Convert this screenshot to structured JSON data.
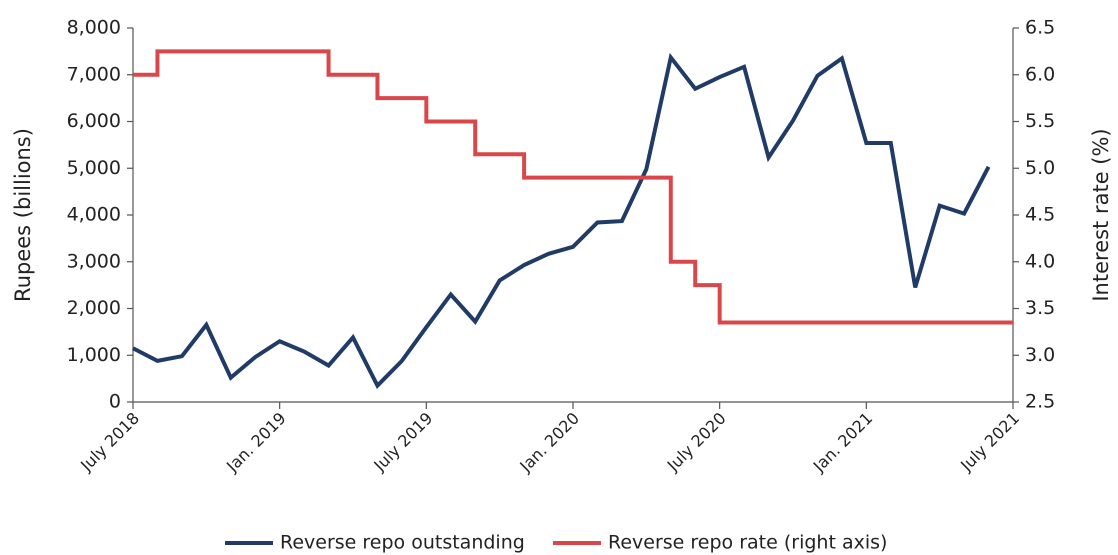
{
  "chart_data": {
    "type": "line",
    "y_label": "Rupees (billions)",
    "y2_label": "Interest rate (%)",
    "categories": [
      "July 2018",
      null,
      null,
      null,
      null,
      null,
      "Jan. 2019",
      null,
      null,
      null,
      null,
      null,
      "July 2019",
      null,
      null,
      null,
      null,
      null,
      "Jan. 2020",
      null,
      null,
      null,
      null,
      null,
      "July 2020",
      null,
      null,
      null,
      null,
      null,
      "Jan. 2021",
      null,
      null,
      null,
      null,
      null,
      "July 2021"
    ],
    "series": [
      {
        "name": "Reverse repo outstanding",
        "color": "#1f3b66",
        "axis": "y",
        "values": [
          1150,
          880,
          980,
          1650,
          520,
          960,
          1300,
          1080,
          780,
          1380,
          350,
          880,
          1600,
          2300,
          1720,
          2600,
          2930,
          3170,
          3320,
          3840,
          3870,
          4980,
          7370,
          6700,
          6950,
          7170,
          5230,
          6020,
          6980,
          7350,
          5540,
          5540,
          2450,
          4200,
          4030,
          5030,
          null
        ]
      },
      {
        "name": "Reverse repo rate (right axis)",
        "color": "#d9474a",
        "axis": "y2",
        "step": true,
        "values": [
          6.0,
          6.25,
          6.25,
          6.25,
          6.25,
          6.25,
          6.25,
          6.25,
          6.0,
          6.0,
          5.75,
          5.75,
          5.5,
          5.5,
          5.15,
          5.15,
          4.9,
          4.9,
          4.9,
          4.9,
          4.9,
          4.9,
          4.0,
          3.75,
          3.35,
          3.35,
          3.35,
          3.35,
          3.35,
          3.35,
          3.35,
          3.35,
          3.35,
          3.35,
          3.35,
          3.35,
          3.35
        ]
      }
    ],
    "ylim": [
      0,
      8000
    ],
    "yticks": [
      0,
      {
        "value": 1000,
        "label": "1,000"
      },
      {
        "value": 2000,
        "label": "2,000"
      },
      {
        "value": 3000,
        "label": "3,000"
      },
      {
        "value": 4000,
        "label": "4,000"
      },
      {
        "value": 5000,
        "label": "5,000"
      },
      {
        "value": 6000,
        "label": "6,000"
      },
      {
        "value": 7000,
        "label": "7,000"
      },
      {
        "value": 8000,
        "label": "8,000"
      }
    ],
    "y2lim": [
      2.5,
      6.5
    ],
    "y2ticks": [
      2.5,
      {
        "value": 3,
        "label": "3.0"
      },
      3.5,
      {
        "value": 4,
        "label": "4.0"
      },
      4.5,
      {
        "value": 5,
        "label": "5.0"
      },
      5.5,
      {
        "value": 6,
        "label": "6.0"
      },
      6.5
    ],
    "legend": "bottom"
  }
}
